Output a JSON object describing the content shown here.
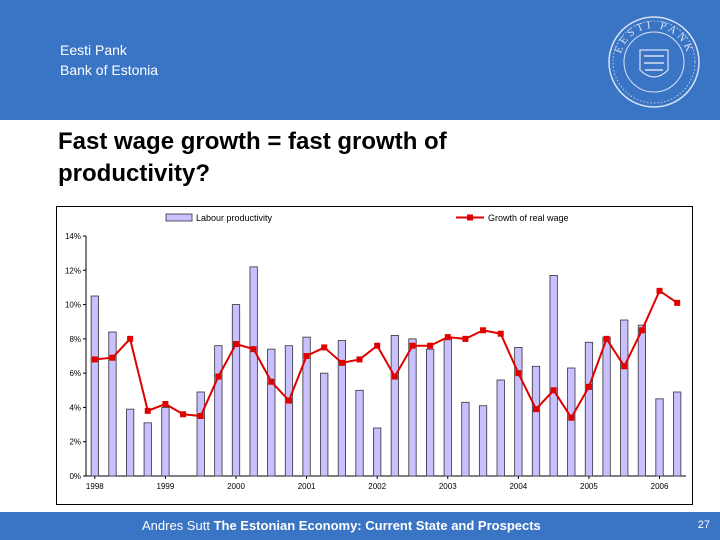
{
  "header": {
    "bank_line1": "Eesti Pank",
    "bank_line2": "Bank of Estonia",
    "logo_text": "EESTI PANK"
  },
  "slide": {
    "title_line1": "Fast wage growth = fast growth of",
    "title_line2": "productivity?"
  },
  "footer": {
    "author": "Andres Sutt",
    "subject": "The Estonian Economy: Current State and Prospects",
    "page_number": "27"
  },
  "colors": {
    "header_bg": "#3a74c4",
    "bar_fill": "#c8c0ff",
    "bar_stroke": "#333333",
    "line": "#e00000"
  },
  "chart_data": {
    "type": "bar+line",
    "title": "",
    "xlabel": "",
    "ylabel": "",
    "ylim": [
      0,
      14
    ],
    "y_ticks": [
      "0%",
      "2%",
      "4%",
      "6%",
      "8%",
      "10%",
      "12%",
      "14%"
    ],
    "x_tick_labels": [
      "1998",
      "1999",
      "2000",
      "2001",
      "2002",
      "2003",
      "2004",
      "2005",
      "2006"
    ],
    "legend_position": "top",
    "grid": false,
    "periods": 34,
    "series": [
      {
        "name": "Labour productivity",
        "kind": "bar",
        "values": [
          10.5,
          8.4,
          3.9,
          3.1,
          4.0,
          0,
          4.9,
          7.6,
          10.0,
          12.2,
          7.4,
          7.6,
          8.1,
          6.0,
          7.9,
          5.0,
          2.8,
          8.2,
          8.0,
          7.4,
          8.0,
          4.3,
          4.1,
          5.6,
          7.5,
          6.4,
          11.7,
          6.3,
          7.8,
          8.1,
          9.1,
          8.8,
          4.5,
          4.9
        ]
      },
      {
        "name": "Growth of real wage",
        "kind": "line",
        "values": [
          6.8,
          6.9,
          8.0,
          3.8,
          4.2,
          3.6,
          3.5,
          5.8,
          7.7,
          7.4,
          5.5,
          4.4,
          7.0,
          7.5,
          6.6,
          6.8,
          7.6,
          5.8,
          7.6,
          7.6,
          8.1,
          8.0,
          8.5,
          8.3,
          6.0,
          3.9,
          5.0,
          3.4,
          5.2,
          8.0,
          6.4,
          8.5,
          10.8,
          10.1
        ]
      }
    ]
  }
}
